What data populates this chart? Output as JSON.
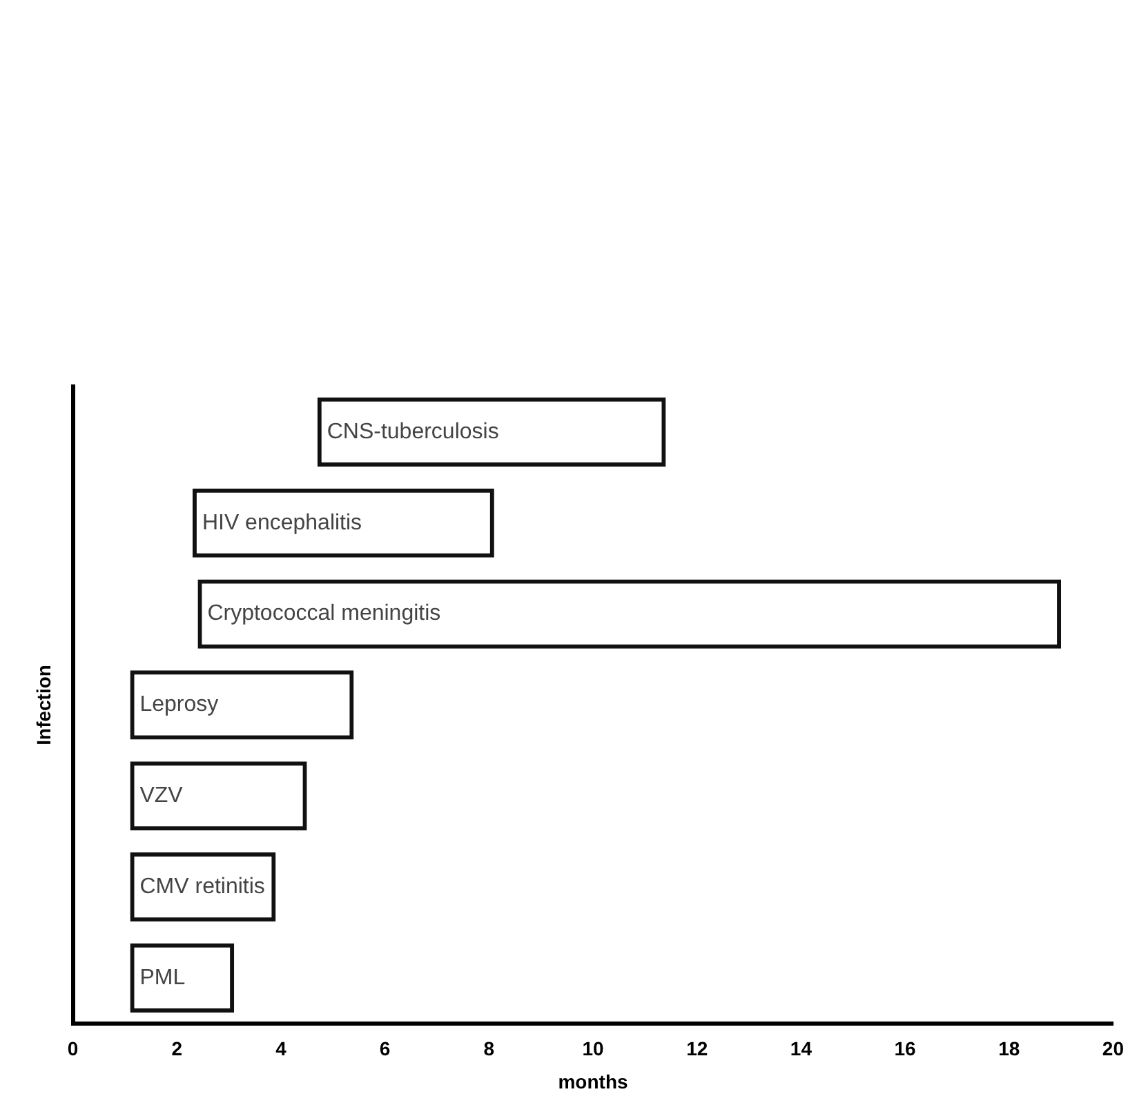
{
  "chart_data": {
    "type": "bar",
    "orientation": "horizontal",
    "xlabel": "months",
    "ylabel": "Infection",
    "categories": [
      "CNS-tuberculosis",
      "HIV encephalitis",
      "Cryptococcal meningitis",
      "Leprosy",
      "VZV",
      "CMV retinitis",
      "PML"
    ],
    "base": [
      4.7,
      2.3,
      2.4,
      1.1,
      1.1,
      1.1,
      1.1
    ],
    "values": [
      6.7,
      5.8,
      16.6,
      4.3,
      3.4,
      2.8,
      2.0
    ],
    "color": "#111111",
    "xlim": [
      0,
      20
    ],
    "xticks": [
      0,
      2,
      4,
      6,
      8,
      10,
      12,
      14,
      16,
      18,
      20
    ],
    "tick_labels": "x",
    "grid": false,
    "legend": false
  }
}
